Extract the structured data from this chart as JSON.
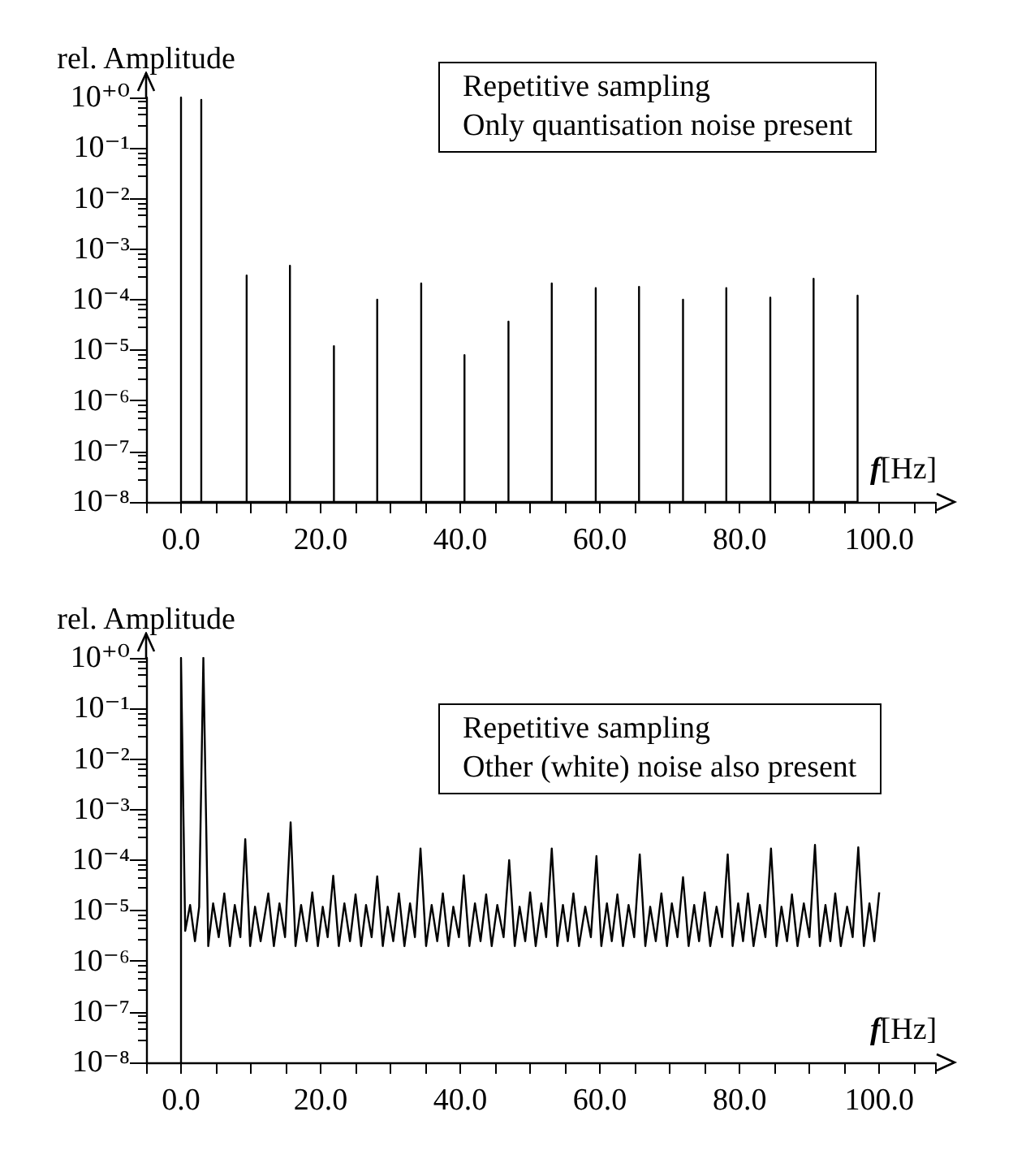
{
  "chart_data": [
    {
      "type": "line",
      "ylabel": "rel. Amplitude",
      "xlabel": "f[Hz]",
      "annotations": [
        "Repetitive sampling",
        "Only quantisation noise present"
      ],
      "log": "y",
      "grid": false,
      "marker": "none",
      "line_style": "solid",
      "xlim": [
        -5,
        108
      ],
      "xticks": [
        {
          "value": -5,
          "label": null
        },
        {
          "value": 0,
          "label": "0.0"
        },
        {
          "value": 5,
          "label": null
        },
        {
          "value": 10,
          "label": null
        },
        {
          "value": 15,
          "label": null
        },
        {
          "value": 20,
          "label": "20.0"
        },
        {
          "value": 25,
          "label": null
        },
        {
          "value": 30,
          "label": null
        },
        {
          "value": 35,
          "label": null
        },
        {
          "value": 40,
          "label": "40.0"
        },
        {
          "value": 45,
          "label": null
        },
        {
          "value": 50,
          "label": null
        },
        {
          "value": 55,
          "label": null
        },
        {
          "value": 60,
          "label": "60.0"
        },
        {
          "value": 65,
          "label": null
        },
        {
          "value": 70,
          "label": null
        },
        {
          "value": 75,
          "label": null
        },
        {
          "value": 80,
          "label": "80.0"
        },
        {
          "value": 85,
          "label": null
        },
        {
          "value": 90,
          "label": null
        },
        {
          "value": 95,
          "label": null
        },
        {
          "value": 100,
          "label": "100.0"
        },
        {
          "value": 105,
          "label": null
        }
      ],
      "ylim": [
        1e-08,
        1
      ],
      "yticks": [
        {
          "value": 1,
          "label": "10⁺⁰"
        },
        {
          "value": 0.1,
          "label": "10⁻¹"
        },
        {
          "value": 0.01,
          "label": "10⁻²"
        },
        {
          "value": 0.001,
          "label": "10⁻³"
        },
        {
          "value": 0.0001,
          "label": "10⁻⁴"
        },
        {
          "value": 1e-05,
          "label": "10⁻⁵"
        },
        {
          "value": 1e-06,
          "label": "10⁻⁶"
        },
        {
          "value": 1e-07,
          "label": "10⁻⁷"
        },
        {
          "value": 1e-08,
          "label": "10⁻⁸"
        }
      ],
      "series": [
        {
          "color": "#000000",
          "x": [
            0,
            0,
            0,
            2.9,
            2.9,
            2.9,
            9.4,
            9.4,
            9.4,
            15.6,
            15.6,
            15.6,
            21.9,
            21.9,
            21.9,
            28.1,
            28.1,
            28.1,
            34.4,
            34.4,
            34.4,
            40.6,
            40.6,
            40.6,
            46.9,
            46.9,
            46.9,
            53.1,
            53.1,
            53.1,
            59.4,
            59.4,
            59.4,
            65.6,
            65.6,
            65.6,
            71.9,
            71.9,
            71.9,
            78.1,
            78.1,
            78.1,
            84.4,
            84.4,
            84.4,
            90.6,
            90.6,
            90.6,
            96.9,
            96.9,
            96.9
          ],
          "values": [
            1e-08,
            1,
            1e-08,
            1e-08,
            0.9,
            1e-08,
            1e-08,
            0.0003,
            1e-08,
            1e-08,
            0.00047,
            1e-08,
            1e-08,
            1.2e-05,
            1e-08,
            1e-08,
            0.0001,
            1e-08,
            1e-08,
            0.00021,
            1e-08,
            1e-08,
            8e-06,
            1e-08,
            1e-08,
            3.7e-05,
            1e-08,
            1e-08,
            0.00021,
            1e-08,
            1e-08,
            0.00017,
            1e-08,
            1e-08,
            0.00018,
            1e-08,
            1e-08,
            0.0001,
            1e-08,
            1e-08,
            0.00017,
            1e-08,
            1e-08,
            0.00011,
            1e-08,
            1e-08,
            0.00026,
            1e-08,
            1e-08,
            0.00012,
            1e-08
          ]
        }
      ]
    },
    {
      "type": "line",
      "ylabel": "rel. Amplitude",
      "xlabel": "f[Hz]",
      "annotations": [
        "Repetitive sampling",
        "Other (white) noise also present"
      ],
      "log": "y",
      "grid": false,
      "marker": "none",
      "line_style": "solid",
      "xlim": [
        -5,
        108
      ],
      "xticks": [
        {
          "value": -5,
          "label": null
        },
        {
          "value": 0,
          "label": "0.0"
        },
        {
          "value": 5,
          "label": null
        },
        {
          "value": 10,
          "label": null
        },
        {
          "value": 15,
          "label": null
        },
        {
          "value": 20,
          "label": "20.0"
        },
        {
          "value": 25,
          "label": null
        },
        {
          "value": 30,
          "label": null
        },
        {
          "value": 35,
          "label": null
        },
        {
          "value": 40,
          "label": "40.0"
        },
        {
          "value": 45,
          "label": null
        },
        {
          "value": 50,
          "label": null
        },
        {
          "value": 55,
          "label": null
        },
        {
          "value": 60,
          "label": "60.0"
        },
        {
          "value": 65,
          "label": null
        },
        {
          "value": 70,
          "label": null
        },
        {
          "value": 75,
          "label": null
        },
        {
          "value": 80,
          "label": "80.0"
        },
        {
          "value": 85,
          "label": null
        },
        {
          "value": 90,
          "label": null
        },
        {
          "value": 95,
          "label": null
        },
        {
          "value": 100,
          "label": "100.0"
        },
        {
          "value": 105,
          "label": null
        }
      ],
      "ylim": [
        1e-08,
        1
      ],
      "yticks": [
        {
          "value": 1,
          "label": "10⁺⁰"
        },
        {
          "value": 0.1,
          "label": "10⁻¹"
        },
        {
          "value": 0.01,
          "label": "10⁻²"
        },
        {
          "value": 0.001,
          "label": "10⁻³"
        },
        {
          "value": 0.0001,
          "label": "10⁻⁴"
        },
        {
          "value": 1e-05,
          "label": "10⁻⁵"
        },
        {
          "value": 1e-06,
          "label": "10⁻⁶"
        },
        {
          "value": 1e-07,
          "label": "10⁻⁷"
        },
        {
          "value": 1e-08,
          "label": "10⁻⁸"
        }
      ],
      "series": [
        {
          "color": "#000000",
          "x": [
            0,
            0,
            0.6,
            1.3,
            2.0,
            2.6,
            3.2,
            3.9,
            4.6,
            5.4,
            6.2,
            7.0,
            7.7,
            8.5,
            9.2,
            9.9,
            10.6,
            11.4,
            12.5,
            13.3,
            14.1,
            14.9,
            15.7,
            16.4,
            17.2,
            18.0,
            18.8,
            19.6,
            20.3,
            21.0,
            21.8,
            22.6,
            23.4,
            24.2,
            25.0,
            25.8,
            26.5,
            27.3,
            28.1,
            28.9,
            29.6,
            30.4,
            31.2,
            32.0,
            32.8,
            33.5,
            34.3,
            35.1,
            35.9,
            36.7,
            37.5,
            38.3,
            39.0,
            39.8,
            40.5,
            41.3,
            42.1,
            42.9,
            43.7,
            44.5,
            45.3,
            46.2,
            47.0,
            47.8,
            48.5,
            49.3,
            50.0,
            50.8,
            51.6,
            52.3,
            53.1,
            53.9,
            54.7,
            55.4,
            56.2,
            57.0,
            57.9,
            58.7,
            59.5,
            60.2,
            61.0,
            61.7,
            62.5,
            63.3,
            64.1,
            64.9,
            65.7,
            66.5,
            67.2,
            68.0,
            68.8,
            69.6,
            70.3,
            71.1,
            71.9,
            72.7,
            73.5,
            74.2,
            75.0,
            75.8,
            76.7,
            77.5,
            78.3,
            79.0,
            79.8,
            80.5,
            81.2,
            82.0,
            82.9,
            83.7,
            84.5,
            85.3,
            86.0,
            86.8,
            87.5,
            88.3,
            89.2,
            90.0,
            90.8,
            91.5,
            92.3,
            93.0,
            93.7,
            94.5,
            95.4,
            96.2,
            97.0,
            97.8,
            98.6,
            99.3,
            100.0
          ],
          "values": [
            1e-08,
            1,
            4e-06,
            1.3e-05,
            2.5e-06,
            1.2e-05,
            1,
            2e-06,
            1.4e-05,
            3e-06,
            2.2e-05,
            2e-06,
            1.3e-05,
            3e-06,
            0.00026,
            2e-06,
            1.2e-05,
            2.5e-06,
            2.2e-05,
            2e-06,
            1.4e-05,
            3e-06,
            0.00056,
            2e-06,
            1.3e-05,
            2.5e-06,
            2.3e-05,
            2e-06,
            1.2e-05,
            3e-06,
            4.9e-05,
            2e-06,
            1.4e-05,
            2.5e-06,
            2.1e-05,
            2e-06,
            1.3e-05,
            3e-06,
            4.8e-05,
            2e-06,
            1.2e-05,
            2.5e-06,
            2.2e-05,
            2e-06,
            1.4e-05,
            3e-06,
            0.00017,
            2e-06,
            1.3e-05,
            2.5e-06,
            2.2e-05,
            2e-06,
            1.2e-05,
            3e-06,
            5e-05,
            2e-06,
            1.4e-05,
            2.5e-06,
            2.1e-05,
            2e-06,
            1.3e-05,
            3e-06,
            0.0001,
            2e-06,
            1.2e-05,
            2.5e-06,
            2.3e-05,
            2e-06,
            1.4e-05,
            3e-06,
            0.00017,
            2e-06,
            1.3e-05,
            2.5e-06,
            2.2e-05,
            2e-06,
            1.2e-05,
            3e-06,
            0.00012,
            2e-06,
            1.4e-05,
            2.5e-06,
            2.1e-05,
            2e-06,
            1.3e-05,
            3e-06,
            0.00013,
            2e-06,
            1.2e-05,
            2.5e-06,
            2.2e-05,
            2e-06,
            1.4e-05,
            3e-06,
            4.6e-05,
            2e-06,
            1.3e-05,
            2.5e-06,
            2.3e-05,
            2e-06,
            1.2e-05,
            3e-06,
            0.00013,
            2e-06,
            1.4e-05,
            2.5e-06,
            2.2e-05,
            2e-06,
            1.3e-05,
            3e-06,
            0.00017,
            2e-06,
            1.2e-05,
            2.5e-06,
            2.1e-05,
            2e-06,
            1.4e-05,
            3e-06,
            0.0002,
            2e-06,
            1.3e-05,
            2.5e-06,
            2.2e-05,
            2e-06,
            1.2e-05,
            3e-06,
            0.00018,
            2e-06,
            1.4e-05,
            2.5e-06,
            2.3e-05
          ]
        }
      ]
    }
  ]
}
